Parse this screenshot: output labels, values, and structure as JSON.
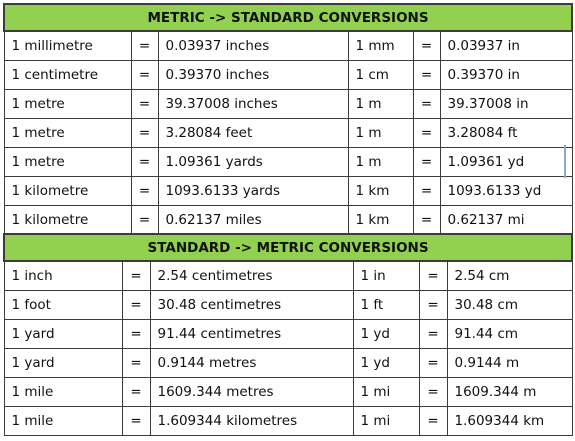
{
  "metric": {
    "title": "METRIC -> STANDARD CONVERSIONS",
    "rows": [
      {
        "unit": "1 millimetre",
        "eq": "=",
        "value": "0.03937 inches",
        "abbr": "1 mm",
        "eq2": "=",
        "short": "0.03937 in"
      },
      {
        "unit": "1 centimetre",
        "eq": "=",
        "value": "0.39370 inches",
        "abbr": "1 cm",
        "eq2": "=",
        "short": "0.39370 in"
      },
      {
        "unit": "1 metre",
        "eq": "=",
        "value": "39.37008 inches",
        "abbr": "1 m",
        "eq2": "=",
        "short": "39.37008 in"
      },
      {
        "unit": "1 metre",
        "eq": "=",
        "value": "3.28084 feet",
        "abbr": "1 m",
        "eq2": "=",
        "short": "3.28084 ft"
      },
      {
        "unit": "1 metre",
        "eq": "=",
        "value": "1.09361 yards",
        "abbr": "1 m",
        "eq2": "=",
        "short": "1.09361 yd"
      },
      {
        "unit": "1 kilometre",
        "eq": "=",
        "value": "1093.6133 yards",
        "abbr": "1 km",
        "eq2": "=",
        "short": "1093.6133 yd"
      },
      {
        "unit": "1 kilometre",
        "eq": "=",
        "value": "0.62137 miles",
        "abbr": "1 km",
        "eq2": "=",
        "short": "0.62137 mi"
      }
    ]
  },
  "standard": {
    "title": "STANDARD -> METRIC CONVERSIONS",
    "rows": [
      {
        "unit": "1 inch",
        "eq": "=",
        "value": "2.54 centimetres",
        "abbr": "1 in",
        "eq2": "=",
        "short": "2.54 cm"
      },
      {
        "unit": "1 foot",
        "eq": "=",
        "value": "30.48 centimetres",
        "abbr": "1 ft",
        "eq2": "=",
        "short": "30.48 cm"
      },
      {
        "unit": "1 yard",
        "eq": "=",
        "value": "91.44 centimetres",
        "abbr": "1 yd",
        "eq2": "=",
        "short": "91.44 cm"
      },
      {
        "unit": "1 yard",
        "eq": "=",
        "value": "0.9144 metres",
        "abbr": "1 yd",
        "eq2": "=",
        "short": "0.9144 m"
      },
      {
        "unit": "1 mile",
        "eq": "=",
        "value": "1609.344 metres",
        "abbr": "1 mi",
        "eq2": "=",
        "short": "1609.344 m"
      },
      {
        "unit": "1 mile",
        "eq": "=",
        "value": "1.609344 kilometres",
        "abbr": "1 mi",
        "eq2": "=",
        "short": "1.609344 km"
      }
    ]
  }
}
